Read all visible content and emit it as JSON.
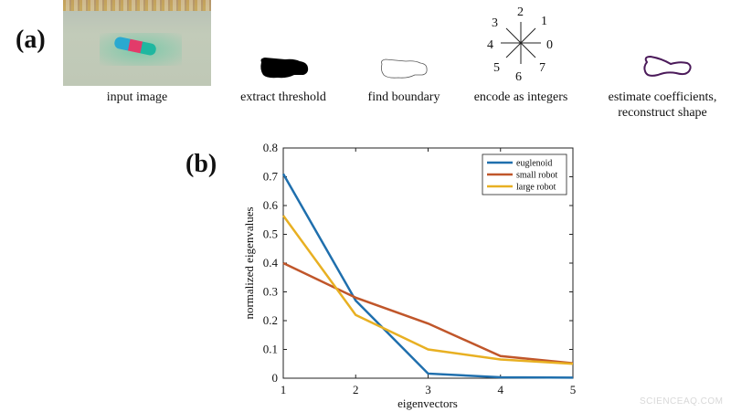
{
  "panel_a": {
    "label": "(a)",
    "steps": [
      {
        "caption": "input image"
      },
      {
        "caption": "extract threshold"
      },
      {
        "caption": "find boundary"
      },
      {
        "caption": "encode as integers"
      },
      {
        "caption_line1": "estimate coefficients,",
        "caption_line2": "reconstruct shape"
      }
    ],
    "direction_codes": [
      "0",
      "1",
      "2",
      "3",
      "4",
      "5",
      "6",
      "7"
    ]
  },
  "panel_b": {
    "label": "(b)"
  },
  "watermark": "SCIENCEAQ.COM",
  "chart_data": {
    "type": "line",
    "x": [
      1,
      2,
      3,
      4,
      5
    ],
    "series": [
      {
        "name": "euglenoid",
        "color": "#1f6fad",
        "values": [
          0.71,
          0.27,
          0.016,
          0.003,
          0.002
        ]
      },
      {
        "name": "small robot",
        "color": "#c0562a",
        "values": [
          0.4,
          0.28,
          0.19,
          0.077,
          0.052
        ]
      },
      {
        "name": "large robot",
        "color": "#e8b022",
        "values": [
          0.565,
          0.22,
          0.1,
          0.065,
          0.05
        ]
      }
    ],
    "xlabel": "eigenvectors",
    "ylabel": "normalized eigenvalues",
    "xlim": [
      1,
      5
    ],
    "ylim": [
      0,
      0.8
    ],
    "xticks": [
      "1",
      "2",
      "3",
      "4",
      "5"
    ],
    "yticks": [
      "0",
      "0.1",
      "0.2",
      "0.3",
      "0.4",
      "0.5",
      "0.6",
      "0.7",
      "0.8"
    ],
    "grid": false,
    "legend_position": "top-right"
  }
}
